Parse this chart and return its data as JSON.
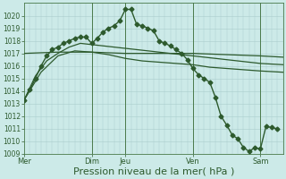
{
  "background_color": "#cceae8",
  "grid_color": "#aacccc",
  "line_color": "#2d5a2d",
  "ylim": [
    1009,
    1021
  ],
  "ytick_vals": [
    1009,
    1010,
    1011,
    1012,
    1013,
    1014,
    1015,
    1016,
    1017,
    1018,
    1019,
    1020
  ],
  "xlabel": "Pression niveau de la mer( hPa )",
  "xlabel_fontsize": 8,
  "day_labels": [
    "Mer",
    "Dim",
    "Jeu",
    "Ven",
    "Sam"
  ],
  "day_positions": [
    0,
    12,
    18,
    30,
    42
  ],
  "xlim": [
    0,
    46
  ],
  "series": [
    {
      "x": [
        0,
        6,
        12,
        18,
        24,
        30,
        36,
        42,
        46
      ],
      "y": [
        1017.0,
        1017.1,
        1017.1,
        1017.0,
        1017.0,
        1017.0,
        1016.9,
        1016.8,
        1016.7
      ],
      "marker": null,
      "linewidth": 0.9,
      "linestyle": "-"
    },
    {
      "x": [
        0,
        3,
        6,
        9,
        12,
        15,
        18,
        21,
        24,
        27,
        30,
        33,
        36,
        39,
        42,
        46
      ],
      "y": [
        1013.3,
        1015.5,
        1016.8,
        1017.2,
        1017.1,
        1016.9,
        1016.6,
        1016.4,
        1016.3,
        1016.2,
        1016.1,
        1015.9,
        1015.8,
        1015.7,
        1015.6,
        1015.5
      ],
      "marker": null,
      "linewidth": 0.9,
      "linestyle": "-"
    },
    {
      "x": [
        0,
        2,
        4,
        6,
        8,
        10,
        12,
        14,
        16,
        18,
        20,
        22,
        24,
        26,
        28,
        30,
        32,
        34,
        36,
        38,
        40,
        42,
        46
      ],
      "y": [
        1013.3,
        1015.2,
        1016.4,
        1017.0,
        1017.5,
        1017.8,
        1017.7,
        1017.6,
        1017.5,
        1017.4,
        1017.3,
        1017.2,
        1017.1,
        1017.0,
        1016.9,
        1016.8,
        1016.7,
        1016.6,
        1016.5,
        1016.4,
        1016.3,
        1016.2,
        1016.1
      ],
      "marker": null,
      "linewidth": 0.9,
      "linestyle": "-"
    },
    {
      "x": [
        0,
        1,
        2,
        3,
        4,
        5,
        6,
        7,
        8,
        9,
        10,
        11,
        12,
        13,
        14,
        15,
        16,
        17,
        18,
        19,
        20,
        21,
        22,
        23,
        24,
        25,
        26,
        27,
        28,
        29,
        30,
        31,
        32,
        33,
        34,
        35,
        36,
        37,
        38,
        39,
        40,
        41,
        42,
        43,
        44,
        45
      ],
      "y": [
        1013.3,
        1014.1,
        1015.0,
        1016.0,
        1016.8,
        1017.3,
        1017.5,
        1017.8,
        1018.0,
        1018.2,
        1018.3,
        1018.3,
        1017.8,
        1018.2,
        1018.7,
        1019.0,
        1019.2,
        1019.6,
        1020.5,
        1020.5,
        1019.3,
        1019.2,
        1019.0,
        1018.8,
        1018.0,
        1017.8,
        1017.6,
        1017.3,
        1017.0,
        1016.5,
        1015.8,
        1015.3,
        1015.0,
        1014.7,
        1013.5,
        1012.0,
        1011.3,
        1010.5,
        1010.2,
        1009.5,
        1009.2,
        1009.5,
        1009.4,
        1011.2,
        1011.1,
        1011.0
      ],
      "marker": "D",
      "markersize": 2.5,
      "linewidth": 1.0,
      "linestyle": "-"
    }
  ],
  "vlines": [
    12,
    18,
    30,
    42
  ],
  "fig_width": 3.2,
  "fig_height": 2.0,
  "dpi": 100
}
